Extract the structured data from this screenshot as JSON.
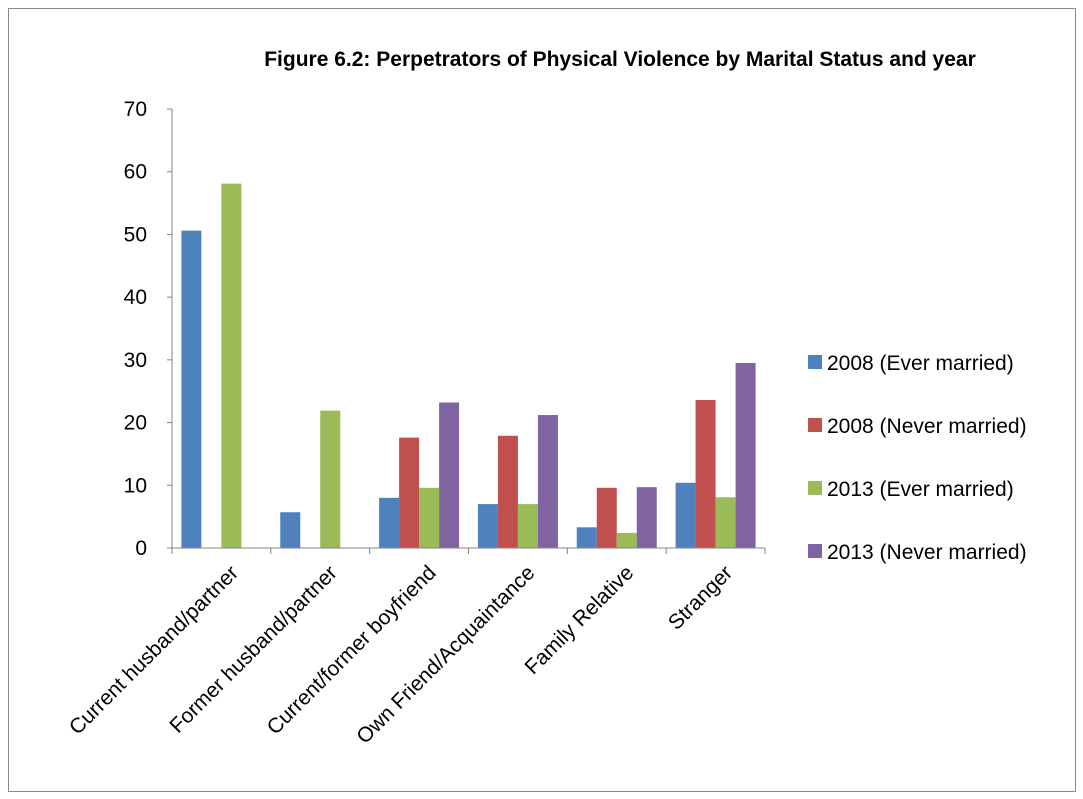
{
  "chart_data": {
    "type": "bar",
    "title": "Figure 6.2: Perpetrators of Physical Violence by Marital Status and year",
    "xlabel": "",
    "ylabel": "",
    "ylim": [
      0,
      70
    ],
    "yticks": [
      "0",
      "10",
      "20",
      "30",
      "40",
      "50",
      "60",
      "70"
    ],
    "grid": false,
    "legend_position": "right",
    "categories": [
      "Current husband/partner",
      "Former husband/partner",
      "Current/former boyfriend",
      "Own Friend/Acquaintance",
      "Family Relative",
      "Stranger"
    ],
    "series": [
      {
        "name": "2008 (Ever married)",
        "color": "#4F81BD",
        "values": [
          50.6,
          5.7,
          8.0,
          7.0,
          3.3,
          10.4
        ]
      },
      {
        "name": "2008 (Never married)",
        "color": "#C0504D",
        "values": [
          null,
          null,
          17.6,
          17.9,
          9.6,
          23.6
        ]
      },
      {
        "name": "2013 (Ever married)",
        "color": "#9BBB59",
        "values": [
          58.1,
          21.9,
          9.6,
          7.0,
          2.4,
          8.1
        ]
      },
      {
        "name": "2013 (Never married)",
        "color": "#8064A2",
        "values": [
          null,
          null,
          23.2,
          21.2,
          9.7,
          29.5
        ]
      }
    ]
  }
}
